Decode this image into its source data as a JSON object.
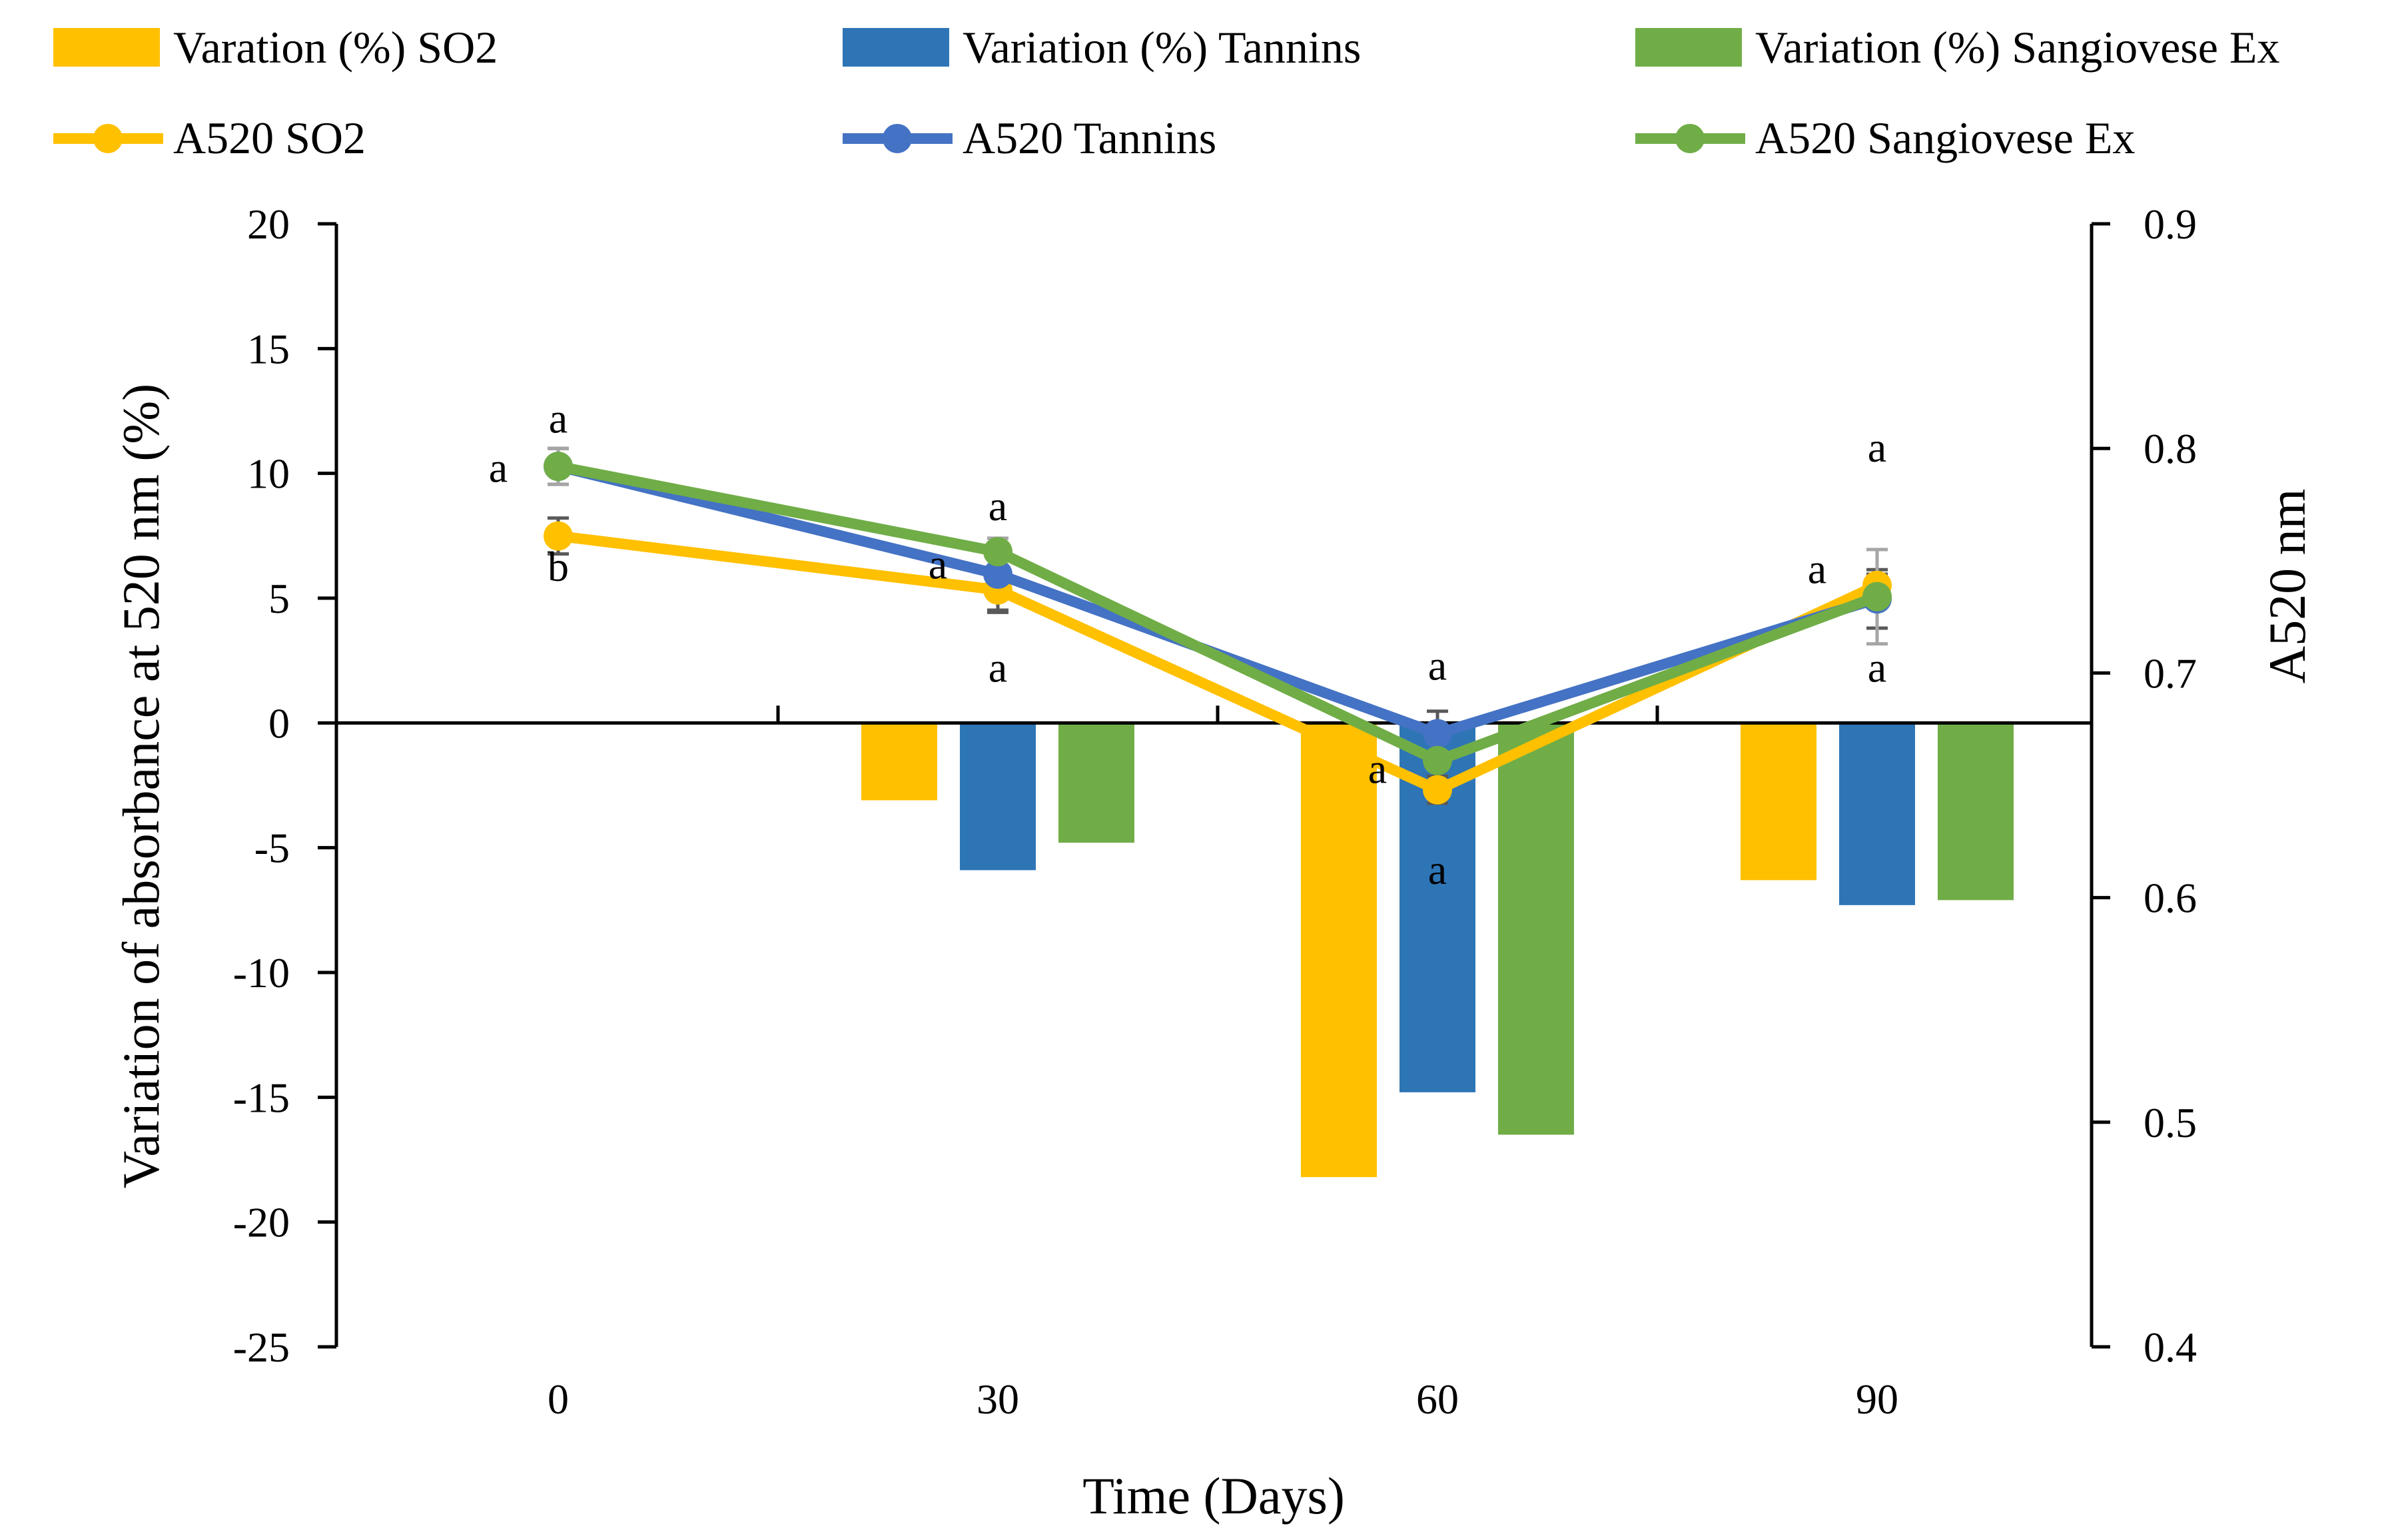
{
  "chart_data": {
    "type": "bar+line",
    "x_categories": [
      "0",
      "30",
      "60",
      "90"
    ],
    "xlabel": "Time (Days)",
    "ylabel": "Variation of absorbance at 520 nm (%)",
    "y2label": "A520 nm",
    "ylim": [
      -25,
      20
    ],
    "y_ticks": [
      20,
      15,
      10,
      5,
      0,
      -5,
      -10,
      -15,
      -20,
      -25
    ],
    "y2lim": [
      0.4,
      0.9
    ],
    "y2_ticks": [
      0.9,
      0.8,
      0.7,
      0.6,
      0.5,
      0.4
    ],
    "y2_tick_labels": [
      "0.9",
      "0.8",
      "0.7",
      "0.6",
      "0.5",
      "0.4"
    ],
    "legend": {
      "bars": [
        {
          "label": "Varation (%) SO2",
          "color": "#FFC000"
        },
        {
          "label": "Variation (%) Tannins",
          "color": "#2E75B6"
        },
        {
          "label": "Variation (%) Sangiovese Ex",
          "color": "#70AD47"
        }
      ],
      "lines": [
        {
          "label": "A520 SO2",
          "color": "#FFC000"
        },
        {
          "label": "A520 Tannins",
          "color": "#4472C4"
        },
        {
          "label": "A520 Sangiovese Ex",
          "color": "#70AD47"
        }
      ]
    },
    "bar_series": [
      {
        "name": "Varation (%) SO2",
        "color": "#FFC000",
        "values": [
          null,
          -3.1,
          -18.2,
          -6.3
        ]
      },
      {
        "name": "Variation (%) Tannins",
        "color": "#2E75B6",
        "values": [
          null,
          -5.9,
          -14.8,
          -7.3
        ]
      },
      {
        "name": "Variation (%) Sangiovese Ex",
        "color": "#70AD47",
        "values": [
          null,
          -4.8,
          -16.5,
          -7.1
        ]
      }
    ],
    "line_series": [
      {
        "name": "A520 SO2",
        "color": "#FFC000",
        "values": [
          0.761,
          0.737,
          0.648,
          0.739
        ],
        "errors": [
          0.008,
          0.01,
          0.006,
          0.005
        ],
        "error_color": "#595959"
      },
      {
        "name": "A520 Tannins",
        "color": "#4472C4",
        "values": [
          0.792,
          0.744,
          0.673,
          0.733
        ],
        "errors": [
          0.008,
          0.016,
          0.01,
          0.013
        ],
        "error_color": "#595959"
      },
      {
        "name": "A520 Sangiovese Ex",
        "color": "#70AD47",
        "values": [
          0.792,
          0.754,
          0.661,
          0.734
        ],
        "errors": [
          0.008,
          0.006,
          0.004,
          0.021
        ],
        "error_color": "#A6A6A6"
      }
    ],
    "annotations": [
      {
        "text": "a",
        "x_index": 0,
        "side": "left",
        "y2": 0.791
      },
      {
        "text": "a",
        "x_index": 0,
        "side": "center",
        "y2": 0.813
      },
      {
        "text": "b",
        "x_index": 0,
        "side": "center",
        "y2": 0.747
      },
      {
        "text": "a",
        "x_index": 1,
        "side": "center",
        "y2": 0.774
      },
      {
        "text": "a",
        "x_index": 1,
        "side": "left",
        "y2": 0.748
      },
      {
        "text": "a",
        "x_index": 1,
        "side": "center",
        "y2": 0.702
      },
      {
        "text": "a",
        "x_index": 2,
        "side": "center",
        "y2": 0.703
      },
      {
        "text": "a",
        "x_index": 2,
        "side": "left",
        "y2": 0.657
      },
      {
        "text": "a",
        "x_index": 2,
        "side": "center",
        "y2": 0.612
      },
      {
        "text": "a",
        "x_index": 3,
        "side": "center",
        "y2": 0.8
      },
      {
        "text": "a",
        "x_index": 3,
        "side": "left",
        "y2": 0.746
      },
      {
        "text": "a",
        "x_index": 3,
        "side": "center",
        "y2": 0.702
      }
    ]
  }
}
